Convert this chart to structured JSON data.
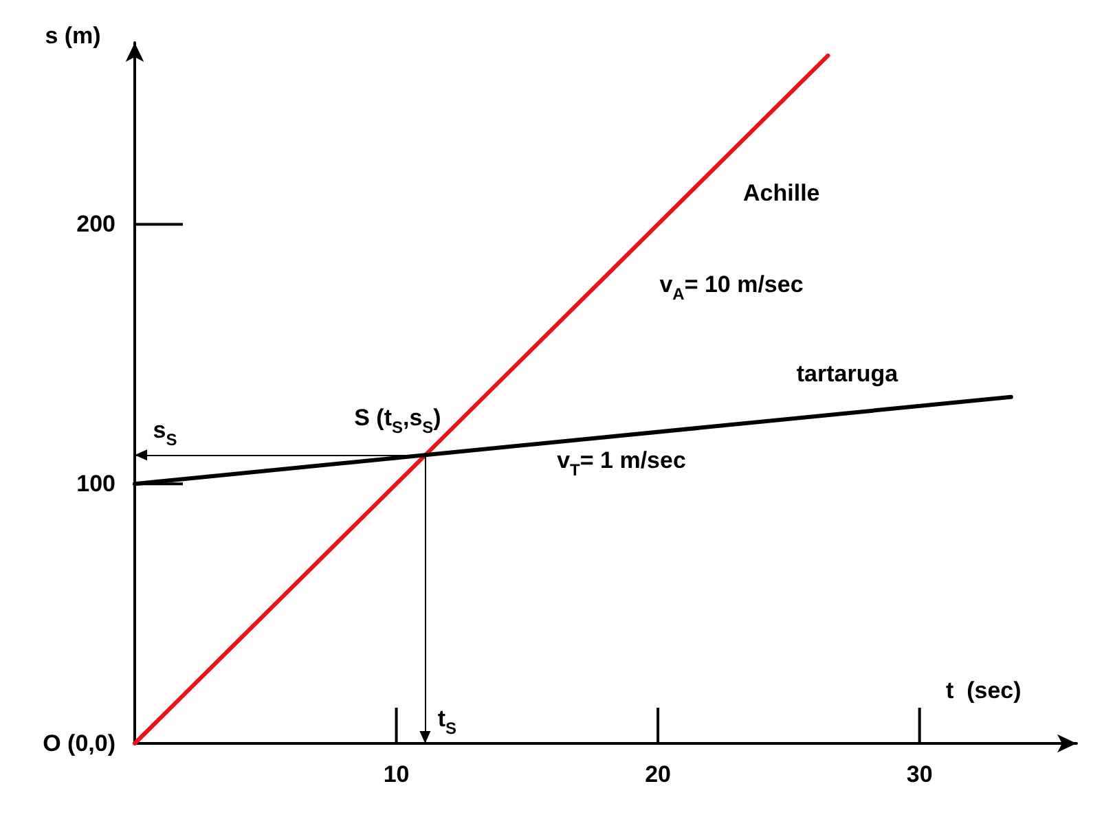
{
  "chart_data": {
    "type": "line",
    "xlabel": "t  (sec)",
    "ylabel": "s (m)",
    "series": [
      {
        "name": "Achille",
        "color": "#e8141b",
        "x": [
          0,
          26.5
        ],
        "values": [
          0,
          265
        ]
      },
      {
        "name": "tartaruga",
        "color": "#000000",
        "x": [
          0,
          33.5
        ],
        "values": [
          100,
          133.5
        ]
      }
    ],
    "xlim": [
      0,
      36
    ],
    "ylim": [
      0,
      270
    ],
    "xticks": [
      10,
      20,
      30
    ],
    "yticks": [
      {
        "value": 0,
        "label": "O (0,0)"
      },
      100,
      200
    ],
    "grid": false,
    "marker": "none",
    "line_style": "solid",
    "ref_lines": [
      {
        "axis": "y",
        "value": 111.1,
        "label": "s$_{S}$"
      },
      {
        "axis": "x",
        "value": 11.1,
        "label": "t$_{S}$"
      }
    ],
    "annotations": [
      {
        "text": "S (t$_{S}$,s$_{S}$)",
        "x": 11.1,
        "y": 111.1
      },
      "v$_{A}$= 10 m/sec",
      "v$_{T}$= 1 m/sec"
    ]
  }
}
